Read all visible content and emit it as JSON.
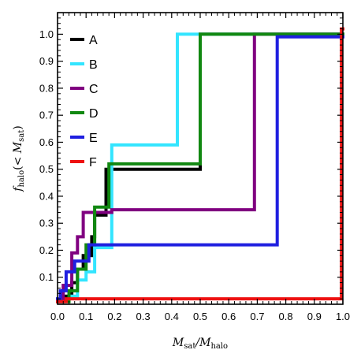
{
  "chart_data": {
    "type": "line",
    "step": "post",
    "xlabel": {
      "main": "M",
      "sub": "sat",
      "sep": "/",
      "main2": "M",
      "sub2": "halo"
    },
    "ylabel": {
      "prefix": "f",
      "sub": "halo",
      "mid": "(< ",
      "main": "M",
      "sub2": "sat",
      "suffix": ")"
    },
    "xlim": [
      0.0,
      1.0
    ],
    "ylim": [
      0.0,
      1.08
    ],
    "xticks": [
      "0.0",
      "0.1",
      "0.2",
      "0.3",
      "0.4",
      "0.5",
      "0.6",
      "0.7",
      "0.8",
      "0.9",
      "1.0"
    ],
    "yticks": [
      "0.1",
      "0.2",
      "0.3",
      "0.4",
      "0.5",
      "0.6",
      "0.7",
      "0.8",
      "0.9",
      "1.0"
    ],
    "grid": false,
    "legend_position": "top-left",
    "series": [
      {
        "name": "A",
        "color": "#000000",
        "points": [
          [
            0.0,
            0.01
          ],
          [
            0.02,
            0.03
          ],
          [
            0.05,
            0.08
          ],
          [
            0.07,
            0.13
          ],
          [
            0.09,
            0.18
          ],
          [
            0.12,
            0.25
          ],
          [
            0.13,
            0.33
          ],
          [
            0.17,
            0.5
          ],
          [
            0.5,
            0.52
          ],
          [
            0.5,
            1.0
          ],
          [
            1.0,
            1.0
          ]
        ]
      },
      {
        "name": "B",
        "color": "#33e5ff",
        "points": [
          [
            0.0,
            0.01
          ],
          [
            0.04,
            0.03
          ],
          [
            0.07,
            0.09
          ],
          [
            0.1,
            0.12
          ],
          [
            0.13,
            0.21
          ],
          [
            0.19,
            0.59
          ],
          [
            0.42,
            1.0
          ],
          [
            1.0,
            1.0
          ]
        ]
      },
      {
        "name": "C",
        "color": "#800080",
        "points": [
          [
            0.0,
            0.01
          ],
          [
            0.02,
            0.07
          ],
          [
            0.05,
            0.19
          ],
          [
            0.07,
            0.25
          ],
          [
            0.09,
            0.34
          ],
          [
            0.19,
            0.35
          ],
          [
            0.69,
            1.0
          ],
          [
            1.0,
            1.0
          ]
        ]
      },
      {
        "name": "D",
        "color": "#118811",
        "points": [
          [
            0.0,
            0.01
          ],
          [
            0.04,
            0.05
          ],
          [
            0.07,
            0.13
          ],
          [
            0.1,
            0.22
          ],
          [
            0.13,
            0.36
          ],
          [
            0.18,
            0.52
          ],
          [
            0.5,
            1.0
          ],
          [
            1.0,
            1.0
          ]
        ]
      },
      {
        "name": "E",
        "color": "#1f1fe0",
        "points": [
          [
            0.0,
            0.02
          ],
          [
            0.01,
            0.05
          ],
          [
            0.03,
            0.12
          ],
          [
            0.06,
            0.16
          ],
          [
            0.11,
            0.22
          ],
          [
            0.77,
            0.99
          ],
          [
            1.0,
            0.99
          ]
        ]
      },
      {
        "name": "F",
        "color": "#ee1111",
        "points": [
          [
            0.0,
            0.01
          ],
          [
            0.03,
            0.02
          ],
          [
            0.995,
            1.02
          ],
          [
            1.0,
            1.02
          ]
        ]
      }
    ]
  }
}
